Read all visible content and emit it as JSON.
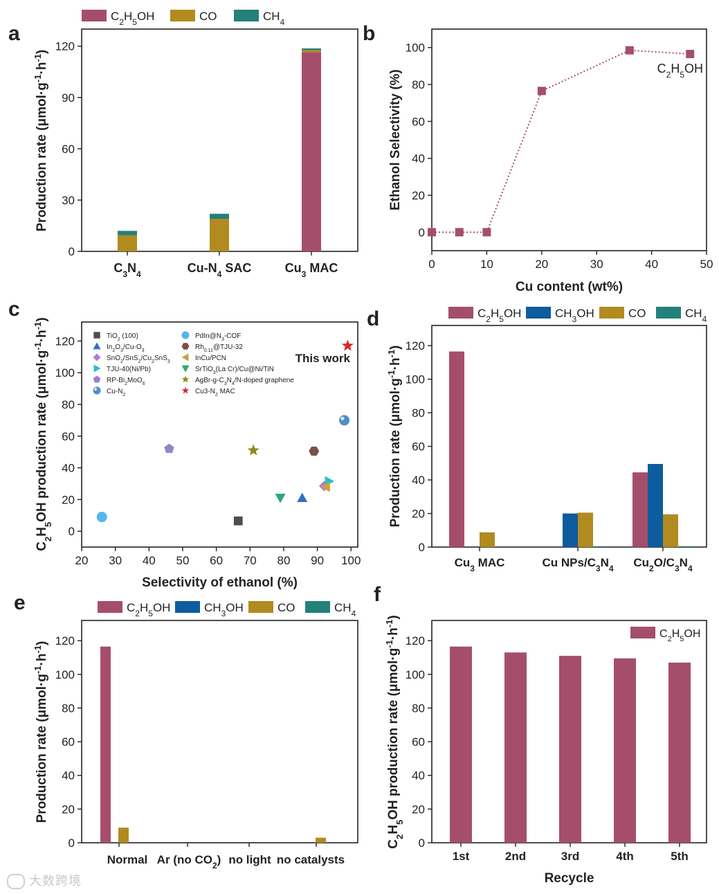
{
  "colors": {
    "c2h5oh": "#a54e6c",
    "ch3oh": "#0d5c9e",
    "co": "#b18b1f",
    "ch4": "#23807a"
  },
  "watermark": "大数跨境",
  "chart_data": [
    {
      "panel": "a",
      "type": "bar",
      "stacked": true,
      "ylabel": "Production rate (μmol·g⁻¹·h⁻¹)",
      "ylim": [
        0,
        130
      ],
      "yticks": [
        0,
        30,
        60,
        90,
        120
      ],
      "categories": [
        "C3N4",
        "Cu-N4 SAC",
        "Cu3 MAC"
      ],
      "category_labels": [
        {
          "main": "C",
          "sub": "3",
          "rest": "N",
          "sub2": "4",
          "tail": ""
        },
        {
          "main": "Cu-N",
          "sub": "4",
          "rest": " SAC",
          "sub2": "",
          "tail": ""
        },
        {
          "main": "Cu",
          "sub": "3",
          "rest": " MAC",
          "sub2": "",
          "tail": ""
        }
      ],
      "legend": [
        "C2H5OH",
        "CO",
        "CH4"
      ],
      "series": [
        {
          "name": "C2H5OH",
          "values": [
            0,
            0,
            116.5
          ]
        },
        {
          "name": "CO",
          "values": [
            9.5,
            19,
            1.2
          ]
        },
        {
          "name": "CH4",
          "values": [
            2.5,
            3,
            1
          ]
        }
      ]
    },
    {
      "panel": "b",
      "type": "line",
      "xlabel": "Cu content (wt%)",
      "ylabel": "Ethanol Selectivity (%)",
      "xlim": [
        0,
        50
      ],
      "ylim": [
        -10,
        110
      ],
      "xticks": [
        0,
        10,
        20,
        30,
        40,
        50
      ],
      "yticks": [
        0,
        20,
        40,
        60,
        80,
        100
      ],
      "series": [
        {
          "name": "C2H5OH",
          "x": [
            0,
            5,
            10,
            20,
            36,
            47
          ],
          "y": [
            0,
            0,
            0,
            76.5,
            98.5,
            96.5
          ]
        }
      ]
    },
    {
      "panel": "c",
      "type": "scatter",
      "xlabel": "Selectivity of ethanol (%)",
      "ylabel": "C2H5OH production rate (μmol·g⁻¹·h⁻¹)",
      "xlim": [
        20,
        102
      ],
      "ylim": [
        -10,
        132
      ],
      "xticks": [
        20,
        30,
        40,
        50,
        60,
        70,
        80,
        90,
        100
      ],
      "yticks": [
        0,
        20,
        40,
        60,
        80,
        100,
        120
      ],
      "annotation": "This work",
      "series": [
        {
          "name": "TiO2 (100)",
          "x": 66.5,
          "y": 6.5,
          "marker": "square",
          "color": "#4d4d4d"
        },
        {
          "name": "In2O3/Cu-O3",
          "x": 85.5,
          "y": 21,
          "marker": "triangle",
          "color": "#2f6fc4"
        },
        {
          "name": "SnO2/SnS2/Cu2SnS3",
          "x": 92,
          "y": 28.5,
          "marker": "diamond",
          "color": "#b07ad6"
        },
        {
          "name": "TJU-40(Ni/Pb)",
          "x": 93.5,
          "y": 31.5,
          "marker": "triangle-right",
          "color": "#25c1c9"
        },
        {
          "name": "RP-Bi2MoO6",
          "x": 46,
          "y": 52,
          "marker": "pentagon",
          "color": "#9683c9"
        },
        {
          "name": "Cu-N2",
          "x": 98,
          "y": 70,
          "marker": "sphere",
          "color": "#4f8fc6"
        },
        {
          "name": "PdIn@N3-COF",
          "x": 26,
          "y": 9,
          "marker": "circle",
          "color": "#56b5ea"
        },
        {
          "name": "Rh0.11@TJU-32",
          "x": 89,
          "y": 50.5,
          "marker": "hexagon",
          "color": "#7a4f49"
        },
        {
          "name": "InCu/PCN",
          "x": 92.5,
          "y": 28,
          "marker": "triangle-left",
          "color": "#c8a13c"
        },
        {
          "name": "SrTiO3(La Cr)/Cu@Ni/TiN",
          "x": 79,
          "y": 21,
          "marker": "triangle-down",
          "color": "#2aa877"
        },
        {
          "name": "AgBr-g-C3N4/N-doped graphene",
          "x": 71,
          "y": 51,
          "marker": "star",
          "color": "#8a8a1e"
        },
        {
          "name": "Cu3-N2 MAC",
          "x": 99,
          "y": 117,
          "marker": "star",
          "color": "#d62a2a"
        }
      ],
      "legend_left": [
        {
          "parts": [
            [
              "TiO",
              ""
            ],
            [
              "2",
              "sub"
            ],
            [
              " (100)",
              ""
            ]
          ],
          "marker": "square",
          "color": "#4d4d4d"
        },
        {
          "parts": [
            [
              "In",
              ""
            ],
            [
              "2",
              "sub"
            ],
            [
              "O",
              ""
            ],
            [
              "3",
              "sub"
            ],
            [
              "/Cu-O",
              ""
            ],
            [
              "3",
              "sub"
            ]
          ],
          "marker": "triangle",
          "color": "#2f6fc4"
        },
        {
          "parts": [
            [
              "SnO",
              ""
            ],
            [
              "2",
              "sub"
            ],
            [
              "/SnS",
              ""
            ],
            [
              "2",
              "sub"
            ],
            [
              "/Cu",
              ""
            ],
            [
              "2",
              "sub"
            ],
            [
              "SnS",
              ""
            ],
            [
              "3",
              "sub"
            ]
          ],
          "marker": "diamond",
          "color": "#b07ad6"
        },
        {
          "parts": [
            [
              "TJU-40(Ni/Pb)",
              ""
            ]
          ],
          "marker": "triangle-right",
          "color": "#25c1c9"
        },
        {
          "parts": [
            [
              "RP-Bi",
              ""
            ],
            [
              "2",
              "sub"
            ],
            [
              "MoO",
              ""
            ],
            [
              "6",
              "sub"
            ]
          ],
          "marker": "pentagon",
          "color": "#9683c9"
        },
        {
          "parts": [
            [
              "Cu-N",
              ""
            ],
            [
              "2",
              "sub"
            ]
          ],
          "marker": "sphere",
          "color": "#4f8fc6"
        }
      ],
      "legend_right": [
        {
          "parts": [
            [
              "PdIn@N",
              ""
            ],
            [
              "3",
              "sub"
            ],
            [
              "-COF",
              ""
            ]
          ],
          "marker": "circle",
          "color": "#56b5ea"
        },
        {
          "parts": [
            [
              "Rh",
              ""
            ],
            [
              "0.11",
              "sub"
            ],
            [
              "@TJU-32",
              ""
            ]
          ],
          "marker": "hexagon",
          "color": "#7a4f49"
        },
        {
          "parts": [
            [
              "InCu/PCN",
              ""
            ]
          ],
          "marker": "triangle-left",
          "color": "#c8a13c"
        },
        {
          "parts": [
            [
              "SrTiO",
              ""
            ],
            [
              "3",
              "sub"
            ],
            [
              "(La Cr)/Cu@Ni/TiN",
              ""
            ]
          ],
          "marker": "triangle-down",
          "color": "#2aa877"
        },
        {
          "parts": [
            [
              "AgBr-g-C",
              ""
            ],
            [
              "3",
              "sub"
            ],
            [
              "N",
              ""
            ],
            [
              "4",
              "sub"
            ],
            [
              "/N-doped graphene",
              ""
            ]
          ],
          "marker": "star",
          "color": "#8a8a1e"
        },
        {
          "parts": [
            [
              "Cu3-N",
              ""
            ],
            [
              "2",
              "sub"
            ],
            [
              " MAC",
              ""
            ]
          ],
          "marker": "star",
          "color": "#d62a2a"
        }
      ]
    },
    {
      "panel": "d",
      "type": "bar",
      "grouped": true,
      "ylabel": "Production rate (μmol·g⁻¹·h⁻¹)",
      "ylim": [
        0,
        132
      ],
      "yticks": [
        0,
        20,
        40,
        60,
        80,
        100,
        120
      ],
      "categories": [
        "Cu3 MAC",
        "Cu NPs/C3N4",
        "Cu2O/C3N4"
      ],
      "category_labels": [
        {
          "main": "Cu",
          "sub": "3",
          "rest": " MAC",
          "sub2": "",
          "tail": ""
        },
        {
          "main": "Cu NPs/C",
          "sub": "3",
          "rest": "N",
          "sub2": "4",
          "tail": ""
        },
        {
          "main": "Cu",
          "sub": "2",
          "rest": "O/C",
          "sub2": "3",
          "tail": "N4"
        }
      ],
      "legend": [
        "C2H5OH",
        "CH3OH",
        "CO",
        "CH4"
      ],
      "series": [
        {
          "name": "C2H5OH",
          "values": [
            116.5,
            0,
            44.5
          ]
        },
        {
          "name": "CH3OH",
          "values": [
            0,
            20,
            49.5
          ]
        },
        {
          "name": "CO",
          "values": [
            8.8,
            20.5,
            19.5
          ]
        },
        {
          "name": "CH4",
          "values": [
            0,
            0.5,
            0.5
          ]
        }
      ]
    },
    {
      "panel": "e",
      "type": "bar",
      "grouped": true,
      "ylabel": "Production rate (μmol·g⁻¹·h⁻¹)",
      "ylim": [
        0,
        132
      ],
      "yticks": [
        0,
        20,
        40,
        60,
        80,
        100,
        120
      ],
      "categories": [
        "Normal",
        "Ar (no CO2)",
        "no light",
        "no catalysts"
      ],
      "legend": [
        "C2H5OH",
        "CH3OH",
        "CO",
        "CH4"
      ],
      "series": [
        {
          "name": "C2H5OH",
          "values": [
            116.5,
            0,
            0,
            0
          ]
        },
        {
          "name": "CH3OH",
          "values": [
            0,
            0,
            0,
            0
          ]
        },
        {
          "name": "CO",
          "values": [
            9,
            0,
            0,
            3
          ]
        },
        {
          "name": "CH4",
          "values": [
            0,
            0,
            0,
            0
          ]
        }
      ]
    },
    {
      "panel": "f",
      "type": "bar",
      "xlabel": "Recycle",
      "ylabel": "C2H5OH production rate (μmol·g⁻¹·h⁻¹)",
      "ylim": [
        0,
        132
      ],
      "yticks": [
        0,
        20,
        40,
        60,
        80,
        100,
        120
      ],
      "categories": [
        "1st",
        "2nd",
        "3rd",
        "4th",
        "5th"
      ],
      "legend": [
        "C2H5OH"
      ],
      "series": [
        {
          "name": "C2H5OH",
          "values": [
            116.5,
            113,
            111,
            109.5,
            107
          ]
        }
      ]
    }
  ]
}
